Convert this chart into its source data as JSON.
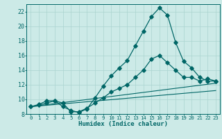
{
  "title": "",
  "xlabel": "Humidex (Indice chaleur)",
  "bg_color": "#cceae7",
  "grid_color": "#aad4d0",
  "line_color": "#006666",
  "xlim": [
    -0.5,
    23.5
  ],
  "ylim": [
    8,
    23
  ],
  "xticks": [
    0,
    1,
    2,
    3,
    4,
    5,
    6,
    7,
    8,
    9,
    10,
    11,
    12,
    13,
    14,
    15,
    16,
    17,
    18,
    19,
    20,
    21,
    22,
    23
  ],
  "yticks": [
    8,
    10,
    12,
    14,
    16,
    18,
    20,
    22
  ],
  "line1_x": [
    0,
    1,
    2,
    3,
    4,
    5,
    6,
    7,
    8,
    9,
    10,
    11,
    12,
    13,
    14,
    15,
    16,
    17,
    18,
    19,
    20,
    21,
    22,
    23
  ],
  "line1_y": [
    9.0,
    9.2,
    9.5,
    9.8,
    9.0,
    8.5,
    8.2,
    8.7,
    10.2,
    11.8,
    13.2,
    14.3,
    15.3,
    17.3,
    19.3,
    21.3,
    22.5,
    21.5,
    17.8,
    15.2,
    14.3,
    13.0,
    12.5,
    12.5
  ],
  "line2_x": [
    0,
    1,
    2,
    3,
    4,
    5,
    6,
    7,
    8,
    9,
    10,
    11,
    12,
    13,
    14,
    15,
    16,
    17,
    18,
    19,
    20,
    21,
    22,
    23
  ],
  "line2_y": [
    9.0,
    9.3,
    9.8,
    9.8,
    9.5,
    8.3,
    8.3,
    8.8,
    9.5,
    10.2,
    11.0,
    11.5,
    12.0,
    13.0,
    14.0,
    15.5,
    16.0,
    15.0,
    14.0,
    13.0,
    13.0,
    12.5,
    12.8,
    12.5
  ],
  "line3_x": [
    0,
    23
  ],
  "line3_y": [
    9.0,
    12.2
  ],
  "line4_x": [
    0,
    23
  ],
  "line4_y": [
    9.0,
    11.2
  ]
}
